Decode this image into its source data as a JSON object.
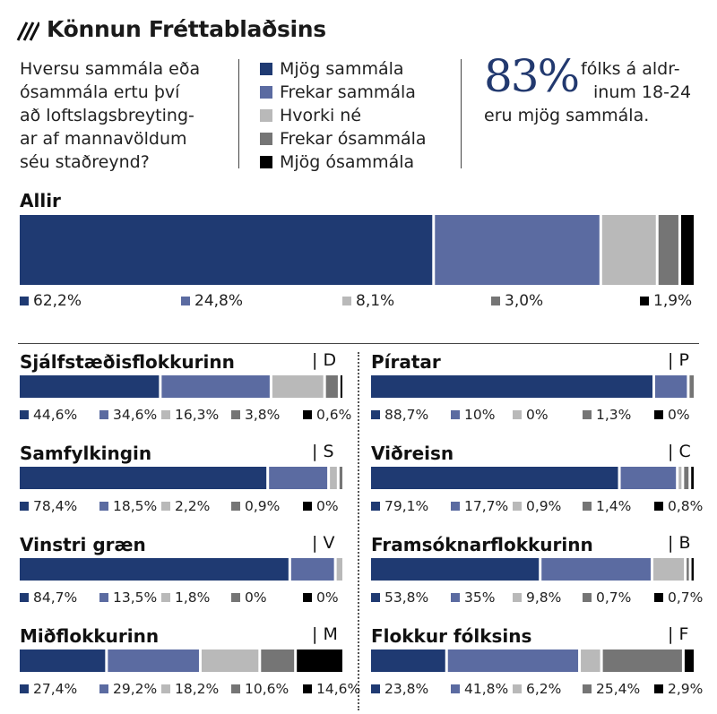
{
  "title": "Könnun Fréttablaðsins",
  "question_lines": [
    "Hversu sammála eða",
    "ósammála ertu því",
    "að loftslagsbreyting-",
    "ar af mannavöldum",
    "séu staðreynd?"
  ],
  "legend": [
    "Mjög sammála",
    "Frekar sammála",
    "Hvorki né",
    "Frekar ósammála",
    "Mjög ósammála"
  ],
  "colors": [
    "#1f3a72",
    "#5b6ba1",
    "#b9b9b9",
    "#757575",
    "#000000"
  ],
  "callout": {
    "value": "83%",
    "lines": [
      "fólks á aldr-",
      "inum 18-24",
      "eru mjög sammála."
    ]
  },
  "chart_data": {
    "type": "bar",
    "stacked": true,
    "orientation": "horizontal",
    "series_names": [
      "Mjög sammála",
      "Frekar sammála",
      "Hvorki né",
      "Frekar ósammála",
      "Mjög ósammála"
    ],
    "groups": [
      {
        "name": "Allir",
        "letter": "",
        "values": [
          62.2,
          24.8,
          8.1,
          3.0,
          1.9
        ],
        "labels": [
          "62,2%",
          "24,8%",
          "8,1%",
          "3,0%",
          "1,9%"
        ]
      },
      {
        "name": "Sjálfstæðisflokkurinn",
        "letter": "| D",
        "values": [
          44.6,
          34.6,
          16.3,
          3.8,
          0.6
        ],
        "labels": [
          "44,6%",
          "34,6%",
          "16,3%",
          "3,8%",
          "0,6%"
        ]
      },
      {
        "name": "Píratar",
        "letter": "| P",
        "values": [
          88.7,
          10,
          0,
          1.3,
          0
        ],
        "labels": [
          "88,7%",
          "10%",
          "0%",
          "1,3%",
          "0%"
        ]
      },
      {
        "name": "Samfylkingin",
        "letter": "| S",
        "values": [
          78.4,
          18.5,
          2.2,
          0.9,
          0
        ],
        "labels": [
          "78,4%",
          "18,5%",
          "2,2%",
          "0,9%",
          "0%"
        ]
      },
      {
        "name": "Viðreisn",
        "letter": "| C",
        "values": [
          79.1,
          17.7,
          0.9,
          1.4,
          0.8
        ],
        "labels": [
          "79,1%",
          "17,7%",
          "0,9%",
          "1,4%",
          "0,8%"
        ]
      },
      {
        "name": "Vinstri græn",
        "letter": "| V",
        "values": [
          84.7,
          13.5,
          1.8,
          0,
          0
        ],
        "labels": [
          "84,7%",
          "13,5%",
          "1,8%",
          "0%",
          "0%"
        ]
      },
      {
        "name": "Framsóknarflokkurinn",
        "letter": "| B",
        "values": [
          53.8,
          35,
          9.8,
          0.7,
          0.7
        ],
        "labels": [
          "53,8%",
          "35%",
          "9,8%",
          "0,7%",
          "0,7%"
        ]
      },
      {
        "name": "Miðflokkurinn",
        "letter": "| M",
        "values": [
          27.4,
          29.2,
          18.2,
          10.6,
          14.6
        ],
        "labels": [
          "27,4%",
          "29,2%",
          "18,2%",
          "10,6%",
          "14,6%"
        ]
      },
      {
        "name": "Flokkur fólksins",
        "letter": "| F",
        "values": [
          23.8,
          41.8,
          6.2,
          25.4,
          2.9
        ],
        "labels": [
          "23,8%",
          "41,8%",
          "6,2%",
          "25,4%",
          "2,9%"
        ]
      }
    ]
  }
}
